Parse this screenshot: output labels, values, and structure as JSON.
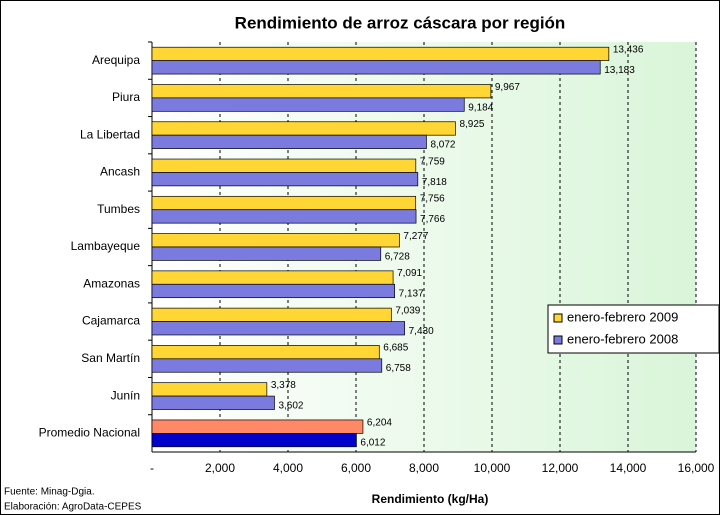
{
  "chart_data": {
    "type": "hbar",
    "title": "Rendimiento de arroz cáscara por región",
    "x_label": "Rendimiento (kg/Ha)",
    "notes": [
      "Fuente: Minag-Dgia.",
      "Elaboración: AgroData-CEPES"
    ],
    "categories": [
      "Arequipa",
      "Piura",
      "La Libertad",
      "Ancash",
      "Tumbes",
      "Lambayeque",
      "Amazonas",
      "Cajamarca",
      "San Martín",
      "Junín",
      "Promedio Nacional"
    ],
    "series": [
      {
        "name": "enero-febrero 2009",
        "color": "#ffd633",
        "colors": [
          "#ffd633",
          "#ffd633",
          "#ffd633",
          "#ffd633",
          "#ffd633",
          "#ffd633",
          "#ffd633",
          "#ffd633",
          "#ffd633",
          "#ffd633",
          "#ff8866"
        ],
        "values": [
          13436,
          9967,
          8925,
          7759,
          7756,
          7277,
          7091,
          7039,
          6685,
          3378,
          6204
        ],
        "value_labels": [
          "13,436",
          "9,967",
          "8,925",
          "7,759",
          "7,756",
          "7,277",
          "7,091",
          "7,039",
          "6,685",
          "3,378",
          "6,204"
        ]
      },
      {
        "name": "enero-febrero 2008",
        "color": "#7b7bdf",
        "colors": [
          "#7b7bdf",
          "#7b7bdf",
          "#7b7bdf",
          "#7b7bdf",
          "#7b7bdf",
          "#7b7bdf",
          "#7b7bdf",
          "#7b7bdf",
          "#7b7bdf",
          "#7b7bdf",
          "#0000cc"
        ],
        "values": [
          13183,
          9184,
          8072,
          7818,
          7766,
          6728,
          7137,
          7430,
          6758,
          3602,
          6012
        ],
        "value_labels": [
          "13,183",
          "9,184",
          "8,072",
          "7,818",
          "7,766",
          "6,728",
          "7,137",
          "7,430",
          "6,758",
          "3,602",
          "6,012"
        ]
      }
    ],
    "xlim": [
      0,
      16000
    ],
    "xticks": [
      {
        "value": 0,
        "label": "-"
      },
      {
        "value": 2000,
        "label": "2,000"
      },
      {
        "value": 4000,
        "label": "4,000"
      },
      {
        "value": 6000,
        "label": "6,000"
      },
      {
        "value": 8000,
        "label": "8,000"
      },
      {
        "value": 10000,
        "label": "10,000"
      },
      {
        "value": 12000,
        "label": "12,000"
      },
      {
        "value": 14000,
        "label": "14,000"
      },
      {
        "value": 16000,
        "label": "16,000"
      }
    ],
    "grid": true,
    "legend": "right"
  }
}
